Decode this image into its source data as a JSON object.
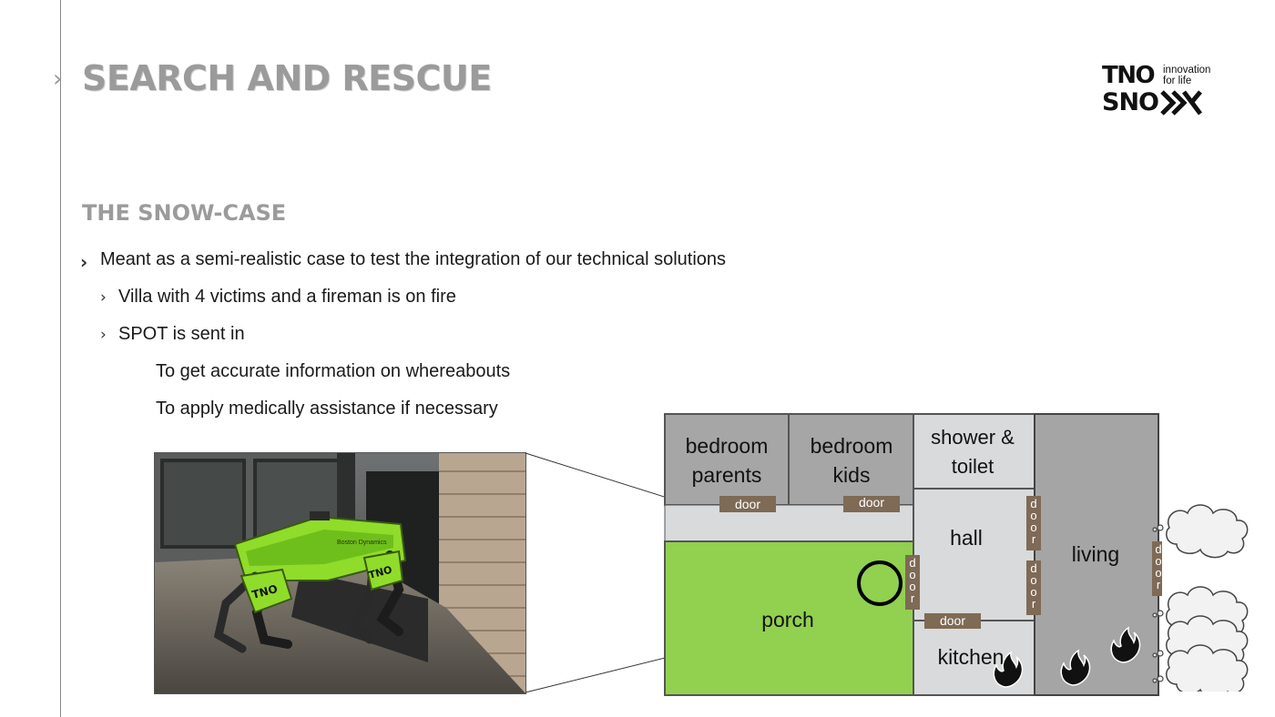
{
  "slide": {
    "title": "SEARCH AND RESCUE",
    "subtitle": "THE SNOW-CASE"
  },
  "logo": {
    "brand": "TNO",
    "tagline_line1": "innovation",
    "tagline_line2": "for life",
    "project": "SNO"
  },
  "bullets": {
    "level1": "Meant as a semi-realistic case to test the integration of our technical solutions",
    "level2_a": "Villa with 4 victims and a fireman is on fire",
    "level2_b": "SPOT is sent in",
    "level3_a": "To get accurate information on whereabouts",
    "level3_b": "To apply medically assistance if necessary"
  },
  "robot_photo": {
    "label_brand": "TNO",
    "label_side": "Boston Dynamics"
  },
  "floor_plan": {
    "rooms": {
      "bedroom_parents_1": "bedroom",
      "bedroom_parents_2": "parents",
      "bedroom_kids_1": "bedroom",
      "bedroom_kids_2": "kids",
      "shower_1": "shower &",
      "shower_2": "toilet",
      "hall": "hall",
      "living": "living",
      "porch": "porch",
      "kitchen": "kitchen"
    },
    "door_label": "door",
    "door_vertical": [
      "d",
      "o",
      "o",
      "r"
    ],
    "colors": {
      "room_gray": "#a6a6a7",
      "hall_light": "#d9dadb",
      "porch_green": "#92d050",
      "door_brown": "#7e6a55",
      "living_gray": "#a5a5a6"
    }
  }
}
